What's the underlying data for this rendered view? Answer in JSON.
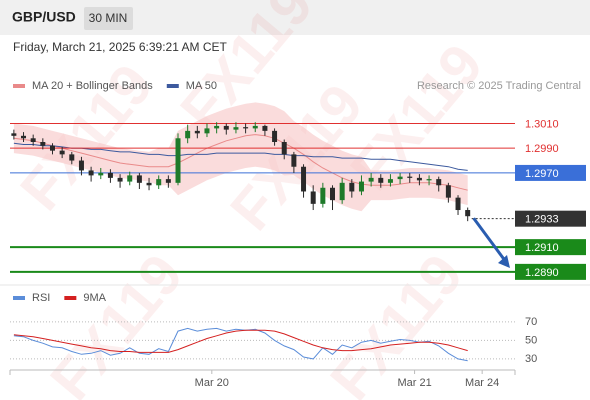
{
  "header": {
    "symbol": "GBP/USD",
    "timeframe": "30 MIN",
    "date": "Friday, March 21, 2025 6:39:21 AM CET"
  },
  "chart_data": {
    "type": "candlestick",
    "watermark": "FX119",
    "source": "Research © 2025 Trading Central",
    "up_color": "#1e7a2a",
    "down_color": "#2a2a2a",
    "ylim": [
      1.2881,
      1.3033
    ],
    "xlim": [
      -0.4,
      51.9
    ],
    "xticks": [
      {
        "value": 20.5,
        "label": "Mar 20"
      },
      {
        "value": 41.5,
        "label": "Mar 21"
      },
      {
        "value": 48.5,
        "label": "Mar 24"
      }
    ],
    "candles": [
      [
        1.3002,
        1.3005,
        1.2997,
        1.3
      ],
      [
        1.3,
        1.3003,
        1.2995,
        1.2998
      ],
      [
        1.2998,
        1.3001,
        1.2992,
        1.2995
      ],
      [
        1.2995,
        1.2998,
        1.2989,
        1.2992
      ],
      [
        1.2992,
        1.2994,
        1.2985,
        1.2988
      ],
      [
        1.2988,
        1.2991,
        1.2982,
        1.2985
      ],
      [
        1.2985,
        1.2987,
        1.2977,
        1.298
      ],
      [
        1.298,
        1.2983,
        1.2968,
        1.2972
      ],
      [
        1.2972,
        1.2975,
        1.2963,
        1.2968
      ],
      [
        1.2968,
        1.2974,
        1.2965,
        1.297
      ],
      [
        1.297,
        1.2973,
        1.2962,
        1.2966
      ],
      [
        1.2966,
        1.2969,
        1.2958,
        1.2963
      ],
      [
        1.2963,
        1.2971,
        1.296,
        1.2968
      ],
      [
        1.2968,
        1.297,
        1.2957,
        1.2962
      ],
      [
        1.2962,
        1.2966,
        1.2956,
        1.296
      ],
      [
        1.296,
        1.2968,
        1.2957,
        1.2965
      ],
      [
        1.2965,
        1.2968,
        1.2958,
        1.2962
      ],
      [
        1.2962,
        1.3002,
        1.296,
        1.2998
      ],
      [
        1.2998,
        1.3009,
        1.2994,
        1.3004
      ],
      [
        1.3004,
        1.3008,
        1.2998,
        1.3002
      ],
      [
        1.3002,
        1.301,
        1.2999,
        1.3006
      ],
      [
        1.3006,
        1.3011,
        1.3002,
        1.3008
      ],
      [
        1.3008,
        1.301,
        1.3001,
        1.3005
      ],
      [
        1.3005,
        1.3011,
        1.3002,
        1.3007
      ],
      [
        1.3007,
        1.301,
        1.3002,
        1.3006
      ],
      [
        1.3006,
        1.3011,
        1.3003,
        1.3008
      ],
      [
        1.3008,
        1.3009,
        1.3,
        1.3004
      ],
      [
        1.3004,
        1.3006,
        1.2992,
        1.2995
      ],
      [
        1.2995,
        1.2997,
        1.2981,
        1.2985
      ],
      [
        1.2985,
        1.2987,
        1.297,
        1.2975
      ],
      [
        1.2975,
        1.2977,
        1.295,
        1.2955
      ],
      [
        1.2955,
        1.296,
        1.294,
        1.2945
      ],
      [
        1.2945,
        1.2962,
        1.2942,
        1.2958
      ],
      [
        1.2958,
        1.296,
        1.294,
        1.2948
      ],
      [
        1.2948,
        1.2966,
        1.2945,
        1.2962
      ],
      [
        1.2962,
        1.2965,
        1.295,
        1.2955
      ],
      [
        1.2955,
        1.2968,
        1.2952,
        1.2963
      ],
      [
        1.2963,
        1.297,
        1.2959,
        1.2966
      ],
      [
        1.2966,
        1.2969,
        1.2958,
        1.2962
      ],
      [
        1.2962,
        1.2969,
        1.2959,
        1.2965
      ],
      [
        1.2965,
        1.297,
        1.2961,
        1.2967
      ],
      [
        1.2967,
        1.297,
        1.2962,
        1.2966
      ],
      [
        1.2966,
        1.2969,
        1.296,
        1.2964
      ],
      [
        1.2964,
        1.2968,
        1.296,
        1.2965
      ],
      [
        1.2965,
        1.2967,
        1.2955,
        1.296
      ],
      [
        1.296,
        1.2962,
        1.2946,
        1.295
      ],
      [
        1.295,
        1.2952,
        1.2936,
        1.294
      ],
      [
        1.294,
        1.2942,
        1.2931,
        1.2935
      ]
    ],
    "overlays": [
      {
        "name": "MA 20 + Bollinger Bands",
        "color": "#e98a8a",
        "band_color": "#f6c4c4",
        "values": [
          1.2998,
          1.2997,
          1.2996,
          1.2994,
          1.2992,
          1.299,
          1.2988,
          1.2986,
          1.2984,
          1.2982,
          1.298,
          1.2978,
          1.2977,
          1.2976,
          1.2975,
          1.2975,
          1.2975,
          1.2978,
          1.2982,
          1.2986,
          1.299,
          1.2993,
          1.2996,
          1.2998,
          1.3,
          1.3001,
          1.3,
          1.2998,
          1.2994,
          1.299,
          1.2985,
          1.2979,
          1.2974,
          1.297,
          1.2966,
          1.2963,
          1.2961,
          1.296,
          1.296,
          1.296,
          1.2961,
          1.2962,
          1.2962,
          1.2962,
          1.2961,
          1.296,
          1.2958,
          1.2956
        ],
        "upper": [
          1.301,
          1.3009,
          1.3008,
          1.3006,
          1.3004,
          1.3002,
          1.3,
          1.2998,
          1.2996,
          1.2994,
          1.2992,
          1.299,
          1.2989,
          1.2988,
          1.2987,
          1.299,
          1.299,
          1.3004,
          1.3008,
          1.3012,
          1.3016,
          1.3019,
          1.3022,
          1.3024,
          1.3026,
          1.3027,
          1.3026,
          1.3024,
          1.302,
          1.3012,
          1.3007,
          1.3001,
          1.2996,
          1.2992,
          1.2988,
          1.2985,
          1.2983,
          1.2972,
          1.2972,
          1.2972,
          1.2973,
          1.2974,
          1.2974,
          1.2974,
          1.2973,
          1.2972,
          1.297,
          1.2968
        ],
        "lower": [
          1.2986,
          1.2985,
          1.2984,
          1.2982,
          1.298,
          1.2978,
          1.2976,
          1.2974,
          1.2972,
          1.297,
          1.2968,
          1.2966,
          1.2965,
          1.2964,
          1.2963,
          1.296,
          1.296,
          1.2952,
          1.2956,
          1.296,
          1.2964,
          1.2967,
          1.297,
          1.2972,
          1.2974,
          1.2975,
          1.2974,
          1.2972,
          1.2968,
          1.2968,
          1.2963,
          1.2957,
          1.2952,
          1.2948,
          1.2944,
          1.2941,
          1.2939,
          1.2948,
          1.2948,
          1.2948,
          1.2949,
          1.295,
          1.295,
          1.295,
          1.2949,
          1.2948,
          1.2946,
          1.2944
        ]
      },
      {
        "name": "MA 50",
        "color": "#3d5a9e",
        "values": [
          1.2994,
          1.2993,
          1.2993,
          1.2992,
          1.2992,
          1.2991,
          1.299,
          1.299,
          1.2989,
          1.2989,
          1.2988,
          1.2987,
          1.2987,
          1.2986,
          1.2985,
          1.2985,
          1.2984,
          1.2984,
          1.2985,
          1.2985,
          1.2985,
          1.2986,
          1.2986,
          1.2986,
          1.2986,
          1.2986,
          1.2986,
          1.2985,
          1.2985,
          1.2984,
          1.2984,
          1.2983,
          1.2983,
          1.2983,
          1.2982,
          1.2982,
          1.2982,
          1.2981,
          1.2981,
          1.2981,
          1.298,
          1.2979,
          1.2978,
          1.2977,
          1.2976,
          1.2975,
          1.2973,
          1.2972
        ]
      }
    ],
    "levels": [
      {
        "value": 1.301,
        "label": "1.3010",
        "color": "#e03030",
        "box": false,
        "dotted": false
      },
      {
        "value": 1.299,
        "label": "1.2990",
        "color": "#e03030",
        "box": false,
        "dotted": false
      },
      {
        "value": 1.297,
        "label": "1.2970",
        "color": "#3a6fd8",
        "box": true,
        "dotted": false
      },
      {
        "value": 1.2933,
        "label": "1.2933",
        "color": "#333333",
        "box": true,
        "dotted": true
      },
      {
        "value": 1.291,
        "label": "1.2910",
        "color": "#1a8a1a",
        "box": true,
        "dotted": false
      },
      {
        "value": 1.289,
        "label": "1.2890",
        "color": "#1a8a1a",
        "box": true,
        "dotted": false
      }
    ],
    "rsi": {
      "ylim": [
        18,
        85
      ],
      "yticks": [
        70,
        50,
        30
      ],
      "series": [
        {
          "name": "RSI",
          "color": "#5b8dd9",
          "values": [
            55,
            54,
            50,
            47,
            43,
            42,
            38,
            35,
            36,
            39,
            34,
            36,
            42,
            36,
            35,
            41,
            38,
            60,
            63,
            60,
            62,
            63,
            60,
            62,
            61,
            62,
            58,
            50,
            44,
            40,
            32,
            30,
            42,
            35,
            45,
            42,
            48,
            50,
            47,
            49,
            51,
            50,
            48,
            49,
            44,
            36,
            30,
            28
          ]
        },
        {
          "name": "9MA",
          "color": "#d42020",
          "values": [
            56,
            55,
            54,
            52,
            50,
            48,
            46,
            44,
            42,
            41,
            39,
            38,
            38,
            37,
            37,
            37,
            37,
            40,
            44,
            48,
            52,
            55,
            58,
            60,
            61,
            61,
            61,
            60,
            57,
            53,
            49,
            45,
            42,
            40,
            39,
            39,
            40,
            41,
            43,
            45,
            46,
            47,
            48,
            48,
            47,
            45,
            42,
            39
          ]
        }
      ]
    }
  }
}
